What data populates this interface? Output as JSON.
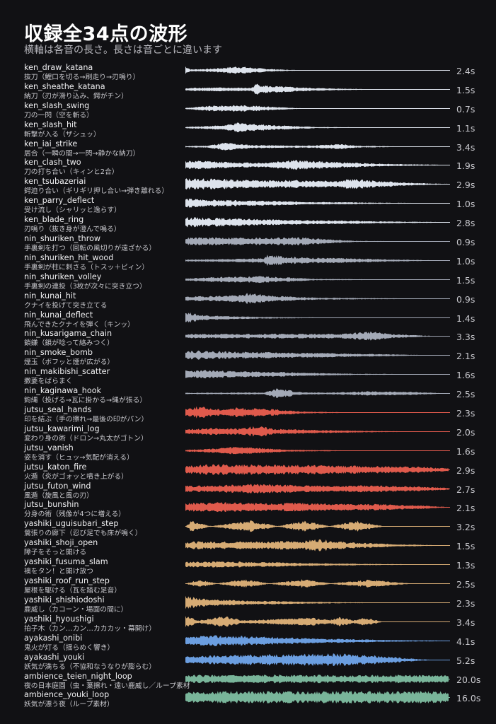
{
  "header": {
    "title": "収録全34点の波形",
    "subtitle": "横軸は各音の長さ。長さは音ごとに違います"
  },
  "colors": {
    "background": "#111114",
    "ken": "#dde3ec",
    "nin": "#a3a9b6",
    "jutsu": "#df5a4c",
    "yashiki": "#d6ab74",
    "ayakashi": "#6b9ee0",
    "ambience": "#79b59a"
  },
  "sounds": [
    {
      "name": "ken_draw_katana",
      "desc": "抜刀（鯉口を切る→刷走り→刃鳴り）",
      "duration": "2.4s",
      "group": "ken"
    },
    {
      "name": "ken_sheathe_katana",
      "desc": "納刀（刃が滑り込み、鍔がチン）",
      "duration": "1.5s",
      "group": "ken"
    },
    {
      "name": "ken_slash_swing",
      "desc": "刀の一閃（空を斬る）",
      "duration": "0.7s",
      "group": "ken"
    },
    {
      "name": "ken_slash_hit",
      "desc": "斬撃が入る（ザシュッ）",
      "duration": "1.1s",
      "group": "ken"
    },
    {
      "name": "ken_iai_strike",
      "desc": "居合（一瞬の間→一閃→静かな納刀）",
      "duration": "3.4s",
      "group": "ken"
    },
    {
      "name": "ken_clash_two",
      "desc": "刀の打ち合い（キィンと2合）",
      "duration": "1.9s",
      "group": "ken"
    },
    {
      "name": "ken_tsubazeriai",
      "desc": "鍔迫り合い（ギリギリ押し合い→弾き離れる）",
      "duration": "2.9s",
      "group": "ken"
    },
    {
      "name": "ken_parry_deflect",
      "desc": "受け流し（シャリッと逸らす）",
      "duration": "1.0s",
      "group": "ken"
    },
    {
      "name": "ken_blade_ring",
      "desc": "刃鳴り（抜き身が澄んで鳴る）",
      "duration": "2.8s",
      "group": "ken"
    },
    {
      "name": "nin_shuriken_throw",
      "desc": "手裏剣を打つ（回転の風切りが遠ざかる）",
      "duration": "0.9s",
      "group": "nin"
    },
    {
      "name": "nin_shuriken_hit_wood",
      "desc": "手裏剣が柱に刺さる（トスッ＋ビィン）",
      "duration": "1.0s",
      "group": "nin"
    },
    {
      "name": "nin_shuriken_volley",
      "desc": "手裏剣の連投（3枚が次々に突き立つ）",
      "duration": "1.5s",
      "group": "nin"
    },
    {
      "name": "nin_kunai_hit",
      "desc": "クナイを投げて突き立てる",
      "duration": "0.9s",
      "group": "nin"
    },
    {
      "name": "nin_kunai_deflect",
      "desc": "飛んできたクナイを弾く（キンッ）",
      "duration": "1.4s",
      "group": "nin"
    },
    {
      "name": "nin_kusarigama_chain",
      "desc": "鎖鎌（鎖が唸って絡みつく）",
      "duration": "3.3s",
      "group": "nin"
    },
    {
      "name": "nin_smoke_bomb",
      "desc": "煙玉（ボフッと煙が広がる）",
      "duration": "2.1s",
      "group": "nin"
    },
    {
      "name": "nin_makibishi_scatter",
      "desc": "撒菱をばらまく",
      "duration": "1.6s",
      "group": "nin"
    },
    {
      "name": "nin_kaginawa_hook",
      "desc": "鉤縄（投げる→瓦に掛かる→縄が張る）",
      "duration": "2.5s",
      "group": "nin"
    },
    {
      "name": "jutsu_seal_hands",
      "desc": "印を結ぶ（手の擦れ→最後の印がパン）",
      "duration": "2.3s",
      "group": "jutsu"
    },
    {
      "name": "jutsu_kawarimi_log",
      "desc": "変わり身の術（ドロン→丸太がゴトン）",
      "duration": "2.0s",
      "group": "jutsu"
    },
    {
      "name": "jutsu_vanish",
      "desc": "姿を消す（ヒュッ→気配が消える）",
      "duration": "1.6s",
      "group": "jutsu"
    },
    {
      "name": "jutsu_katon_fire",
      "desc": "火遁（炎がゴォッと噴き上がる）",
      "duration": "2.9s",
      "group": "jutsu"
    },
    {
      "name": "jutsu_futon_wind",
      "desc": "風遁（旋風と風の刃）",
      "duration": "2.7s",
      "group": "jutsu"
    },
    {
      "name": "jutsu_bunshin",
      "desc": "分身の術（残像が4つに増える）",
      "duration": "2.1s",
      "group": "jutsu"
    },
    {
      "name": "yashiki_uguisubari_step",
      "desc": "鶯張りの廊下（忍び足でも床が鳴く）",
      "duration": "3.2s",
      "group": "yashiki"
    },
    {
      "name": "yashiki_shoji_open",
      "desc": "障子をそっと開ける",
      "duration": "1.5s",
      "group": "yashiki"
    },
    {
      "name": "yashiki_fusuma_slam",
      "desc": "襖をタン！と開け放つ",
      "duration": "1.3s",
      "group": "yashiki"
    },
    {
      "name": "yashiki_roof_run_step",
      "desc": "屋根を駆ける（瓦を踏む足音）",
      "duration": "2.5s",
      "group": "yashiki"
    },
    {
      "name": "yashiki_shishiodoshi",
      "desc": "鹿威し（カコーン・場面の間に）",
      "duration": "2.3s",
      "group": "yashiki"
    },
    {
      "name": "yashiki_hyoushigi",
      "desc": "拍子木（カン…カン…カカカッ・幕開け）",
      "duration": "3.4s",
      "group": "yashiki"
    },
    {
      "name": "ayakashi_onibi",
      "desc": "鬼火が灯る（揺らめく響き）",
      "duration": "4.1s",
      "group": "ayakashi"
    },
    {
      "name": "ayakashi_youki",
      "desc": "妖気が満ちる（不協和なうなりが膨らむ）",
      "duration": "5.2s",
      "group": "ayakashi"
    },
    {
      "name": "ambience_teien_night_loop",
      "desc": "夜の日本庭園（虫・葉擦れ・遠い鹿威し／ループ素材",
      "duration": "20.0s",
      "group": "ambience"
    },
    {
      "name": "ambience_youki_loop",
      "desc": "妖気が漂う夜（ループ素材）",
      "duration": "16.0s",
      "group": "ambience"
    }
  ]
}
